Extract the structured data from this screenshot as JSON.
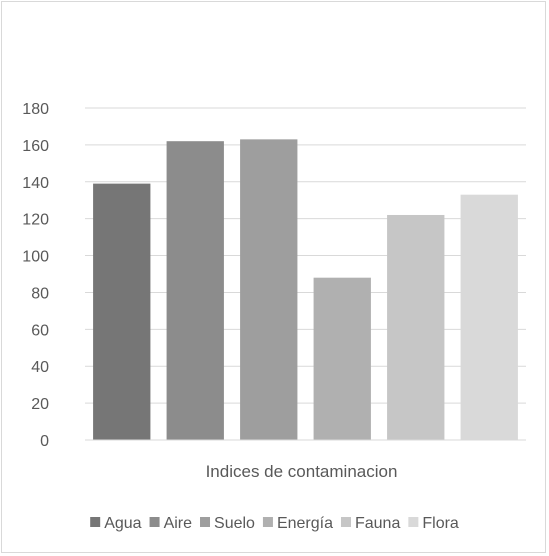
{
  "chart_data": {
    "type": "bar",
    "title": "",
    "xlabel": "Indices de contaminacion",
    "ylabel": "",
    "categories": [
      "Agua",
      "Aire",
      "Suelo",
      "Energía",
      "Fauna",
      "Flora"
    ],
    "values": [
      139,
      162,
      163,
      88,
      122,
      133
    ],
    "colors": [
      "#767676",
      "#8c8c8c",
      "#9e9e9e",
      "#b0b0b0",
      "#c6c6c6",
      "#d9d9d9"
    ],
    "ylim": [
      0,
      180
    ],
    "yticks": [
      0,
      20,
      40,
      60,
      80,
      100,
      120,
      140,
      160,
      180
    ],
    "grid": true,
    "legend_position": "bottom"
  }
}
